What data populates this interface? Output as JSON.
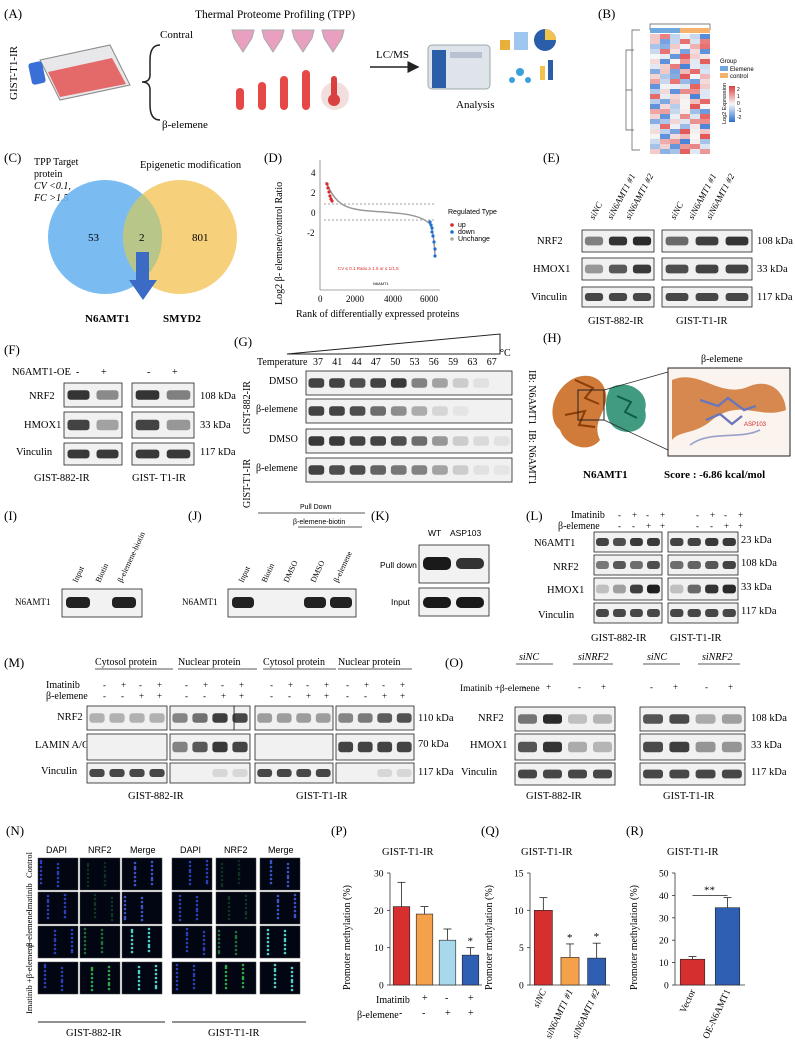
{
  "panels": {
    "A": {
      "letter": "(A)",
      "cell_line": "GIST-T1-IR",
      "branch_top": "Contral",
      "branch_bottom": "β-elemene",
      "tpp_title": "Thermal Proteome Profiling (TPP)",
      "arrow_label": "LC/MS",
      "analysis_label": "Analysis"
    },
    "B": {
      "letter": "(B)",
      "legend_title": "Group",
      "legend_items": [
        "Elemene",
        "control"
      ],
      "scale_title": "Log2 Expression",
      "scale_ticks": [
        "2",
        "1",
        "0",
        "-1",
        "-2"
      ],
      "colors": {
        "group_elemene": "#6fa8dc",
        "group_control": "#f6b26b",
        "high": "#e03c3c",
        "low": "#2a6fd1",
        "mid": "#f7f7f7"
      }
    },
    "C": {
      "letter": "(C)",
      "left_title_1": "TPP Target",
      "left_title_2": "protein",
      "left_title_3": "CV <0.1,",
      "left_title_4": "FC >1.5",
      "right_title": "Epigenetic modification",
      "left_only": "53",
      "overlap": "2",
      "right_only": "801",
      "gene_1": "N6AMT1",
      "gene_2": "SMYD2",
      "colors": {
        "left": "#6cb4f0",
        "right": "#f5c863",
        "arrow": "#3b6bc4"
      }
    },
    "D": {
      "letter": "(D)",
      "ylabel": "Log2 β- elemene/control Ratio",
      "xlabel": "Rank of differentially expressed proteins",
      "yticks": [
        "4",
        "2",
        "0",
        "-2"
      ],
      "xticks": [
        "0",
        "2000",
        "4000",
        "6000"
      ],
      "legend_title": "Regulated Type",
      "legend_items": [
        "up",
        "down",
        "Unchange"
      ],
      "annotation": "CV ≤ 0.1 Ratio ≥ 1.5 or ≤ 1/1.5",
      "point_label": "N6AMT1"
    },
    "E": {
      "letter": "(E)",
      "lanes": [
        "siNC",
        "siN6AMT1 #1",
        "siN6AMT1 #2",
        "siNC",
        "siN6AMT1 #1",
        "siN6AMT1 #2"
      ],
      "rows": [
        "NRF2",
        "HMOX1",
        "Vinculin"
      ],
      "kda": [
        "108 kDa",
        "33 kDa",
        "117 kDa"
      ],
      "cells": [
        "GIST-882-IR",
        "GIST-T1-IR"
      ]
    },
    "F": {
      "letter": "(F)",
      "oe_label": "N6AMT1-OE",
      "signs": [
        "-",
        "+",
        "-",
        "+"
      ],
      "rows": [
        "NRF2",
        "HMOX1",
        "Vinculin"
      ],
      "kda": [
        "108 kDa",
        "33 kDa",
        "117 kDa"
      ],
      "cells": [
        "GIST-882-IR",
        "GIST- T1-IR"
      ]
    },
    "G": {
      "letter": "(G)",
      "temp_label": "Temperature",
      "temps": [
        "37",
        "41",
        "44",
        "47",
        "50",
        "53",
        "56",
        "59",
        "63",
        "67"
      ],
      "unit": "°C",
      "rows": [
        "DMSO",
        "β-elemene",
        "DMSO",
        "β-elemene"
      ],
      "cells": [
        "GIST-882-IR",
        "GIST-T1-IR"
      ],
      "ib": "IB: N6AMT1"
    },
    "H": {
      "letter": "(H)",
      "ligand": "β-elemene",
      "residue": "ASP103",
      "protein": "N6AMT1",
      "score": "Score : -6.86 kcal/mol"
    },
    "I": {
      "letter": "(I)",
      "lanes": [
        "Input",
        "Biotin",
        "β-elemene-biotin"
      ],
      "row": "N6AMT1"
    },
    "J": {
      "letter": "(J)",
      "header_1": "Pull Down",
      "header_2": "β-elemene-biotin",
      "lanes": [
        "Input",
        "Biotin",
        "DMSO",
        "DMSO",
        "β-elemene"
      ],
      "row": "N6AMT1"
    },
    "K": {
      "letter": "(K)",
      "lanes": [
        "WT",
        "ASP103"
      ],
      "rows": [
        "Pull down",
        "Input"
      ]
    },
    "L": {
      "letter": "(L)",
      "treatments": [
        "Imatinib",
        "β-elemene"
      ],
      "signs_imatinib": [
        "-",
        "+",
        "-",
        "+",
        "-",
        "+",
        "-",
        "+"
      ],
      "signs_elemene": [
        "-",
        "-",
        "+",
        "+",
        "-",
        "-",
        "+",
        "+"
      ],
      "rows": [
        "N6AMT1",
        "NRF2",
        "HMOX1",
        "Vinculin"
      ],
      "kda": [
        "23 kDa",
        "108 kDa",
        "33 kDa",
        "117 kDa"
      ],
      "cells": [
        "GIST-882-IR",
        "GIST-T1-IR"
      ]
    },
    "M": {
      "letter": "(M)",
      "fractions": [
        "Cytosol protein",
        "Nuclear protein",
        "Cytosol protein",
        "Nuclear protein"
      ],
      "treatments": [
        "Imatinib",
        "β-elemene"
      ],
      "signs_imatinib": [
        "-",
        "+",
        "-",
        "+"
      ],
      "signs_elemene": [
        "-",
        "-",
        "+",
        "+"
      ],
      "rows": [
        "NRF2",
        "LAMIN A/C",
        "Vinculin"
      ],
      "kda": [
        "110 kDa",
        "70 kDa",
        "117 kDa"
      ],
      "cells": [
        "GIST-882-IR",
        "GIST-T1-IR"
      ]
    },
    "O": {
      "letter": "(O)",
      "groups": [
        "siNC",
        "siNRF2",
        "siNC",
        "siNRF2"
      ],
      "treatment": "Imatinib +β-elemene",
      "signs": [
        "-",
        "+",
        "-",
        "+",
        "-",
        "+",
        "-",
        "+"
      ],
      "rows": [
        "NRF2",
        "HMOX1",
        "Vinculin"
      ],
      "kda": [
        "108 kDa",
        "33 kDa",
        "117 kDa"
      ],
      "cells": [
        "GIST-882-IR",
        "GIST-T1-IR"
      ]
    },
    "N": {
      "letter": "(N)",
      "channels": [
        "DAPI",
        "NRF2",
        "Merge",
        "DAPI",
        "NRF2",
        "Merge"
      ],
      "rows": [
        "Control",
        "Imatinib",
        "β-elemene",
        "Imatinib +β-elemene"
      ],
      "cells": [
        "GIST-882-IR",
        "GIST-T1-IR"
      ]
    },
    "P": {
      "letter": "(P)",
      "title": "GIST-T1-IR",
      "ylabel": "Promoter methylation (%)",
      "row_labels": [
        "Imatinib",
        "β-elemene"
      ]
    },
    "Q": {
      "letter": "(Q)",
      "title": "GIST-T1-IR",
      "ylabel": "Promoter methylation (%)"
    },
    "R": {
      "letter": "(R)",
      "title": "GIST-T1-IR",
      "ylabel": "Promoter methylation (%)",
      "sig": "**"
    }
  },
  "chart_data": [
    {
      "type": "bar",
      "panel": "P",
      "title": "GIST-T1-IR",
      "ylabel": "Promoter methylation (%)",
      "categories": [
        "-/-",
        "+/-",
        "-/+",
        "+/+"
      ],
      "imatinib": [
        "-",
        "+",
        "-",
        "+"
      ],
      "elemene": [
        "-",
        "-",
        "+",
        "+"
      ],
      "values": [
        21,
        19,
        12,
        8
      ],
      "errors": [
        6.5,
        2,
        3,
        2
      ],
      "significance": [
        "",
        "",
        "",
        "*"
      ],
      "colors": [
        "#d62f2f",
        "#f5a04a",
        "#a7d8ec",
        "#2f5fb3"
      ],
      "yticks": [
        "0",
        "10",
        "20",
        "30"
      ],
      "ylim": [
        0,
        30
      ]
    },
    {
      "type": "bar",
      "panel": "Q",
      "title": "GIST-T1-IR",
      "ylabel": "Promoter methylation (%)",
      "categories": [
        "siNC",
        "siN6AMT1 #1",
        "siN6AMT1 #2"
      ],
      "values": [
        10,
        3.7,
        3.6
      ],
      "errors": [
        1.7,
        1.8,
        2
      ],
      "significance": [
        "",
        "*",
        "*"
      ],
      "colors": [
        "#d62f2f",
        "#f5a04a",
        "#2f5fb3"
      ],
      "yticks": [
        "0",
        "5",
        "10",
        "15"
      ],
      "ylim": [
        0,
        15
      ]
    },
    {
      "type": "bar",
      "panel": "R",
      "title": "GIST-T1-IR",
      "ylabel": "Promoter methylation (%)",
      "categories": [
        "Vector",
        "OE-N6AMT1"
      ],
      "values": [
        11.5,
        34.5
      ],
      "errors": [
        1.2,
        4.5
      ],
      "colors": [
        "#d62f2f",
        "#2f5fb3"
      ],
      "yticks": [
        "0",
        "10",
        "20",
        "30",
        "40",
        "50"
      ],
      "ylim": [
        0,
        50
      ]
    }
  ]
}
